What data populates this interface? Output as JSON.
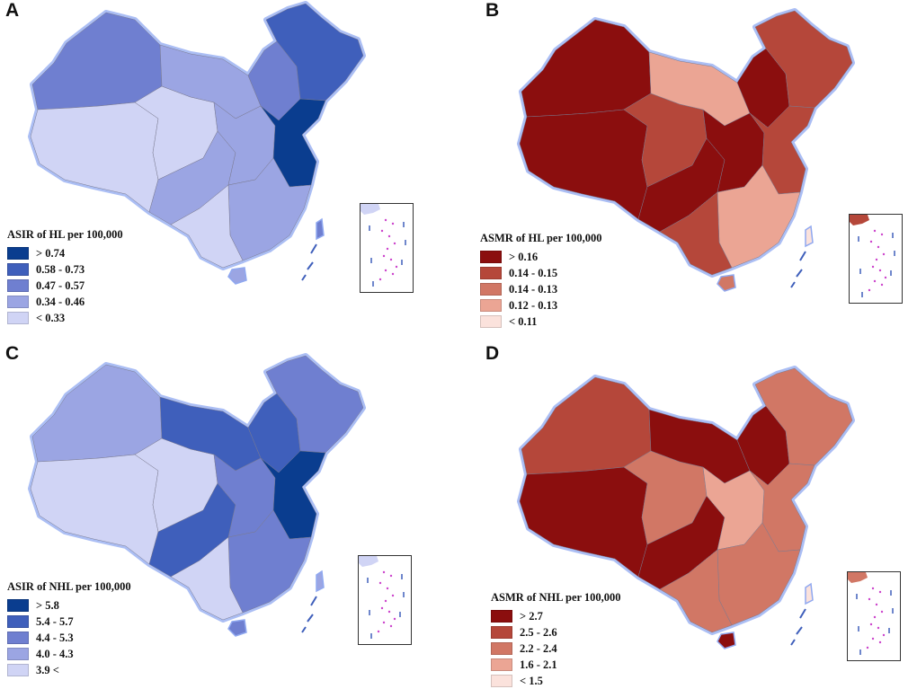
{
  "colors": {
    "outline_glow": "#8fa8f0",
    "island_dots": "#cc44cc",
    "blue_scale": [
      "#0a3d8f",
      "#3f5fbb",
      "#6f7fd0",
      "#9ba5e3",
      "#d0d4f5"
    ],
    "red_scale": [
      "#8b0e0e",
      "#b5473a",
      "#d17765",
      "#eba594",
      "#fbe2dc"
    ]
  },
  "panels": [
    {
      "id": "A",
      "letter": "A",
      "palette": "blue",
      "legend_title": "ASIR of HL per 100,000",
      "legend_items": [
        {
          "label": "> 0.74",
          "color": "#0a3d8f"
        },
        {
          "label": "0.58 - 0.73",
          "color": "#3f5fbb"
        },
        {
          "label": "0.47 - 0.57",
          "color": "#6f7fd0"
        },
        {
          "label": "0.34 - 0.46",
          "color": "#9ba5e3"
        },
        {
          "label": "< 0.33",
          "color": "#d0d4f5"
        }
      ],
      "regions": {
        "northwest": 2,
        "tibet": 4,
        "qinghai": 4,
        "north": 3,
        "northeast": 2,
        "far_northeast": 1,
        "central_west": 3,
        "central": 3,
        "east_coast": 0,
        "south": 3,
        "southwest": 4,
        "hainan": 3,
        "taiwan": 2
      }
    },
    {
      "id": "B",
      "letter": "B",
      "palette": "red",
      "legend_title": "ASMR of HL per 100,000",
      "legend_items": [
        {
          "label": "> 0.16",
          "color": "#8b0e0e"
        },
        {
          "label": "0.14 - 0.15",
          "color": "#b5473a"
        },
        {
          "label": "0.14 - 0.13",
          "color": "#d17765"
        },
        {
          "label": "0.12 - 0.13",
          "color": "#eba594"
        },
        {
          "label": "< 0.11",
          "color": "#fbe2dc"
        }
      ],
      "regions": {
        "northwest": 0,
        "tibet": 0,
        "qinghai": 1,
        "north": 3,
        "northeast": 0,
        "far_northeast": 1,
        "central_west": 0,
        "central": 0,
        "east_coast": 1,
        "south": 3,
        "southwest": 1,
        "hainan": 2,
        "taiwan": 4
      }
    },
    {
      "id": "C",
      "letter": "C",
      "palette": "blue",
      "legend_title": "ASIR of NHL per 100,000",
      "legend_items": [
        {
          "label": "> 5.8",
          "color": "#0a3d8f"
        },
        {
          "label": "5.4 - 5.7",
          "color": "#3f5fbb"
        },
        {
          "label": "4.4 - 5.3",
          "color": "#6f7fd0"
        },
        {
          "label": "4.0 - 4.3",
          "color": "#9ba5e3"
        },
        {
          "label": "3.9 <",
          "color": "#d0d4f5"
        }
      ],
      "regions": {
        "northwest": 3,
        "tibet": 4,
        "qinghai": 4,
        "north": 1,
        "northeast": 1,
        "far_northeast": 2,
        "central_west": 1,
        "central": 2,
        "east_coast": 0,
        "south": 2,
        "southwest": 4,
        "hainan": 2,
        "taiwan": 3
      }
    },
    {
      "id": "D",
      "letter": "D",
      "palette": "red",
      "legend_title": "ASMR of NHL per 100,000",
      "legend_items": [
        {
          "label": "> 2.7",
          "color": "#8b0e0e"
        },
        {
          "label": "2.5 - 2.6",
          "color": "#b5473a"
        },
        {
          "label": "2.2 - 2.4",
          "color": "#d17765"
        },
        {
          "label": "1.6 - 2.1",
          "color": "#eba594"
        },
        {
          "label": "< 1.5",
          "color": "#fbe2dc"
        }
      ],
      "regions": {
        "northwest": 1,
        "tibet": 0,
        "qinghai": 2,
        "north": 0,
        "northeast": 0,
        "far_northeast": 2,
        "central_west": 0,
        "central": 3,
        "east_coast": 2,
        "south": 2,
        "southwest": 2,
        "hainan": 0,
        "taiwan": 4
      }
    }
  ]
}
